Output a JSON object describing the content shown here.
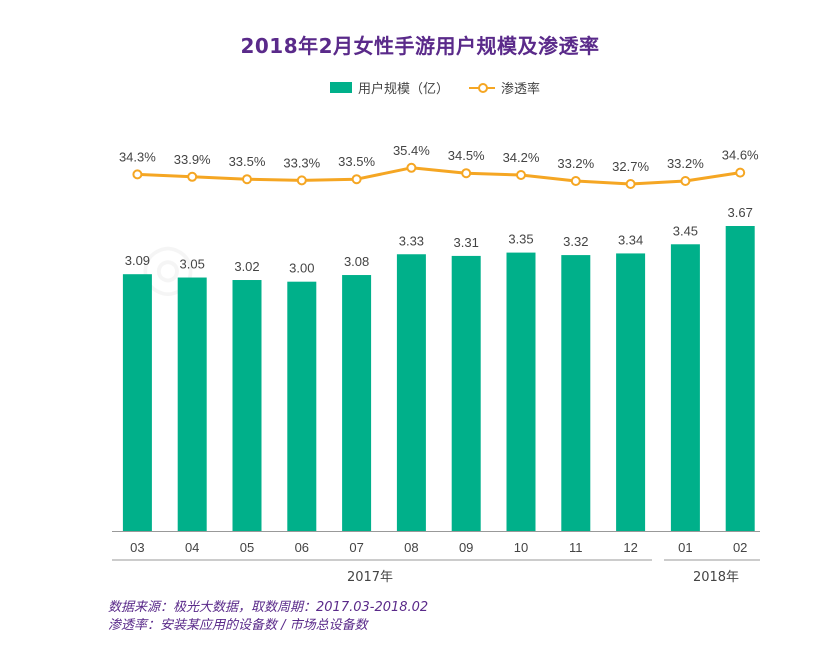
{
  "title": "2018年2月女性手游用户规模及渗透率",
  "legend": {
    "bar_label": "用户规模（亿）",
    "line_label": "渗透率"
  },
  "year_labels": {
    "y2017": "2017年",
    "y2018": "2018年"
  },
  "source": {
    "line1": "数据来源：极光大数据，取数周期：2017.03-2018.02",
    "line2": "渗透率：安装某应用的设备数 / 市场总设备数"
  },
  "colors": {
    "bar": "#00b08a",
    "line": "#f5a623",
    "title": "#5a2a8a"
  },
  "chart_data": {
    "type": "bar",
    "categories": [
      "03",
      "04",
      "05",
      "06",
      "07",
      "08",
      "09",
      "10",
      "11",
      "12",
      "01",
      "02"
    ],
    "series": [
      {
        "name": "用户规模（亿）",
        "type": "bar",
        "values": [
          3.09,
          3.05,
          3.02,
          3.0,
          3.08,
          3.33,
          3.31,
          3.35,
          3.32,
          3.34,
          3.45,
          3.67
        ],
        "labels": [
          "3.09",
          "3.05",
          "3.02",
          "3.00",
          "3.08",
          "3.33",
          "3.31",
          "3.35",
          "3.32",
          "3.34",
          "3.45",
          "3.67"
        ]
      },
      {
        "name": "渗透率",
        "type": "line",
        "values": [
          34.3,
          33.9,
          33.5,
          33.3,
          33.5,
          35.4,
          34.5,
          34.2,
          33.2,
          32.7,
          33.2,
          34.6
        ],
        "labels": [
          "34.3%",
          "33.9%",
          "33.5%",
          "33.3%",
          "33.5%",
          "35.4%",
          "34.5%",
          "34.2%",
          "33.2%",
          "32.7%",
          "33.2%",
          "34.6%"
        ]
      }
    ],
    "xgroups": [
      {
        "label": "2017年",
        "categories": [
          "03",
          "04",
          "05",
          "06",
          "07",
          "08",
          "09",
          "10",
          "11",
          "12"
        ]
      },
      {
        "label": "2018年",
        "categories": [
          "01",
          "02"
        ]
      }
    ],
    "grid": false,
    "legend_position": "top-center"
  }
}
